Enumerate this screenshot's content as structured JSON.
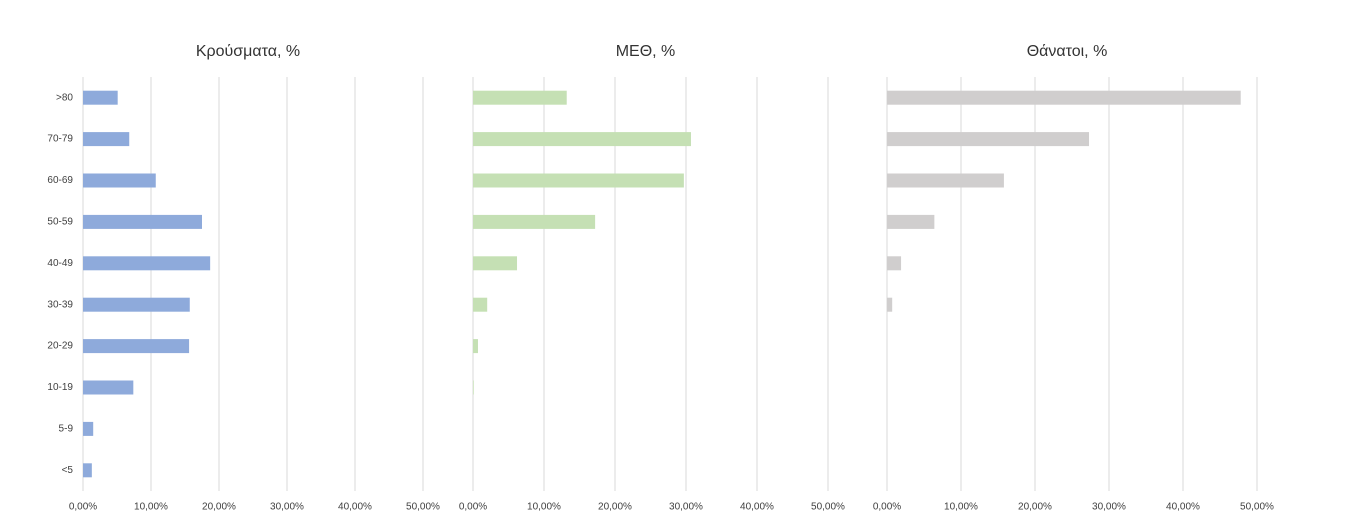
{
  "chart_data": [
    {
      "type": "bar",
      "orientation": "horizontal",
      "title": "Κρούσματα, %",
      "color": "#8eaadb",
      "grid": true,
      "categories": [
        ">80",
        "70-79",
        "60-69",
        "50-59",
        "40-49",
        "30-39",
        "20-29",
        "10-19",
        "5-9",
        "<5"
      ],
      "values": [
        5.1,
        6.8,
        10.7,
        17.5,
        18.7,
        15.7,
        15.6,
        7.4,
        1.5,
        1.3
      ],
      "xlim": [
        0,
        50
      ],
      "xticks": [
        {
          "value": 0,
          "label": "0,00%"
        },
        {
          "value": 10,
          "label": "10,00%"
        },
        {
          "value": 20,
          "label": "20,00%"
        },
        {
          "value": 30,
          "label": "30,00%"
        },
        {
          "value": 40,
          "label": "40,00%"
        },
        {
          "value": 50,
          "label": "50,00%"
        }
      ]
    },
    {
      "type": "bar",
      "orientation": "horizontal",
      "title": "ΜΕΘ, %",
      "color": "#c5e0b4",
      "grid": true,
      "values": [
        13.2,
        30.7,
        29.7,
        17.2,
        6.2,
        2.0,
        0.7,
        0.1,
        0,
        0
      ],
      "xlim": [
        0,
        50
      ],
      "xticks": [
        {
          "value": 0,
          "label": "0,00%"
        },
        {
          "value": 10,
          "label": "10,00%"
        },
        {
          "value": 20,
          "label": "20,00%"
        },
        {
          "value": 30,
          "label": "30,00%"
        },
        {
          "value": 40,
          "label": "40,00%"
        },
        {
          "value": 50,
          "label": "50,00%"
        }
      ]
    },
    {
      "type": "bar",
      "orientation": "horizontal",
      "title": "Θάνατοι, %",
      "color": "#d0cece",
      "grid": true,
      "values": [
        47.8,
        27.3,
        15.8,
        6.4,
        1.9,
        0.7,
        0,
        0,
        0,
        0
      ],
      "xlim": [
        0,
        50
      ],
      "xticks": [
        {
          "value": 0,
          "label": "0,00%"
        },
        {
          "value": 10,
          "label": "10,00%"
        },
        {
          "value": 20,
          "label": "20,00%"
        },
        {
          "value": 30,
          "label": "30,00%"
        },
        {
          "value": 40,
          "label": "40,00%"
        },
        {
          "value": 50,
          "label": "50,00%"
        }
      ]
    }
  ]
}
